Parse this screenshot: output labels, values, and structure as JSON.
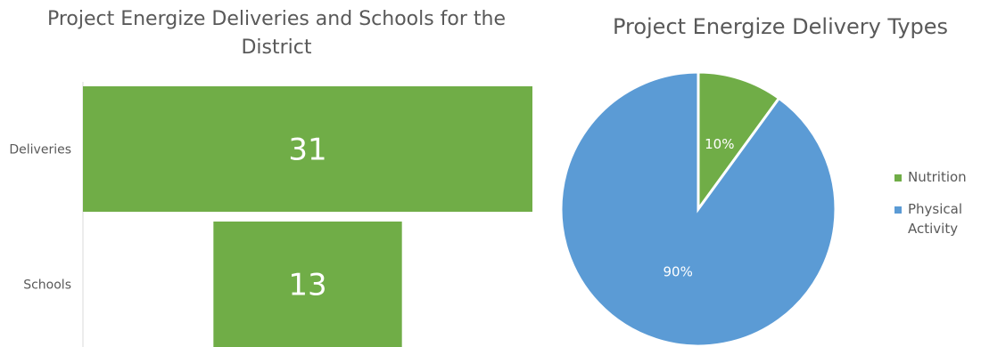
{
  "chart_data": [
    {
      "type": "bar",
      "orientation": "horizontal",
      "title": "Project Energize Deliveries and Schools for the District",
      "categories": [
        "Deliveries",
        "Schools"
      ],
      "values": [
        31,
        13
      ],
      "data_labels": [
        "31",
        "13"
      ],
      "xlim": [
        0,
        31
      ],
      "bar_alignment": "centered",
      "grid": false,
      "color": "#70ad47"
    },
    {
      "type": "pie",
      "title": "Project Energize Delivery Types",
      "labels": [
        "Nutrition",
        "Physical Activity"
      ],
      "values": [
        10,
        90
      ],
      "data_labels": [
        "10%",
        "90%"
      ],
      "colors": [
        "#70ad47",
        "#5b9bd5"
      ],
      "legend": "right"
    }
  ]
}
